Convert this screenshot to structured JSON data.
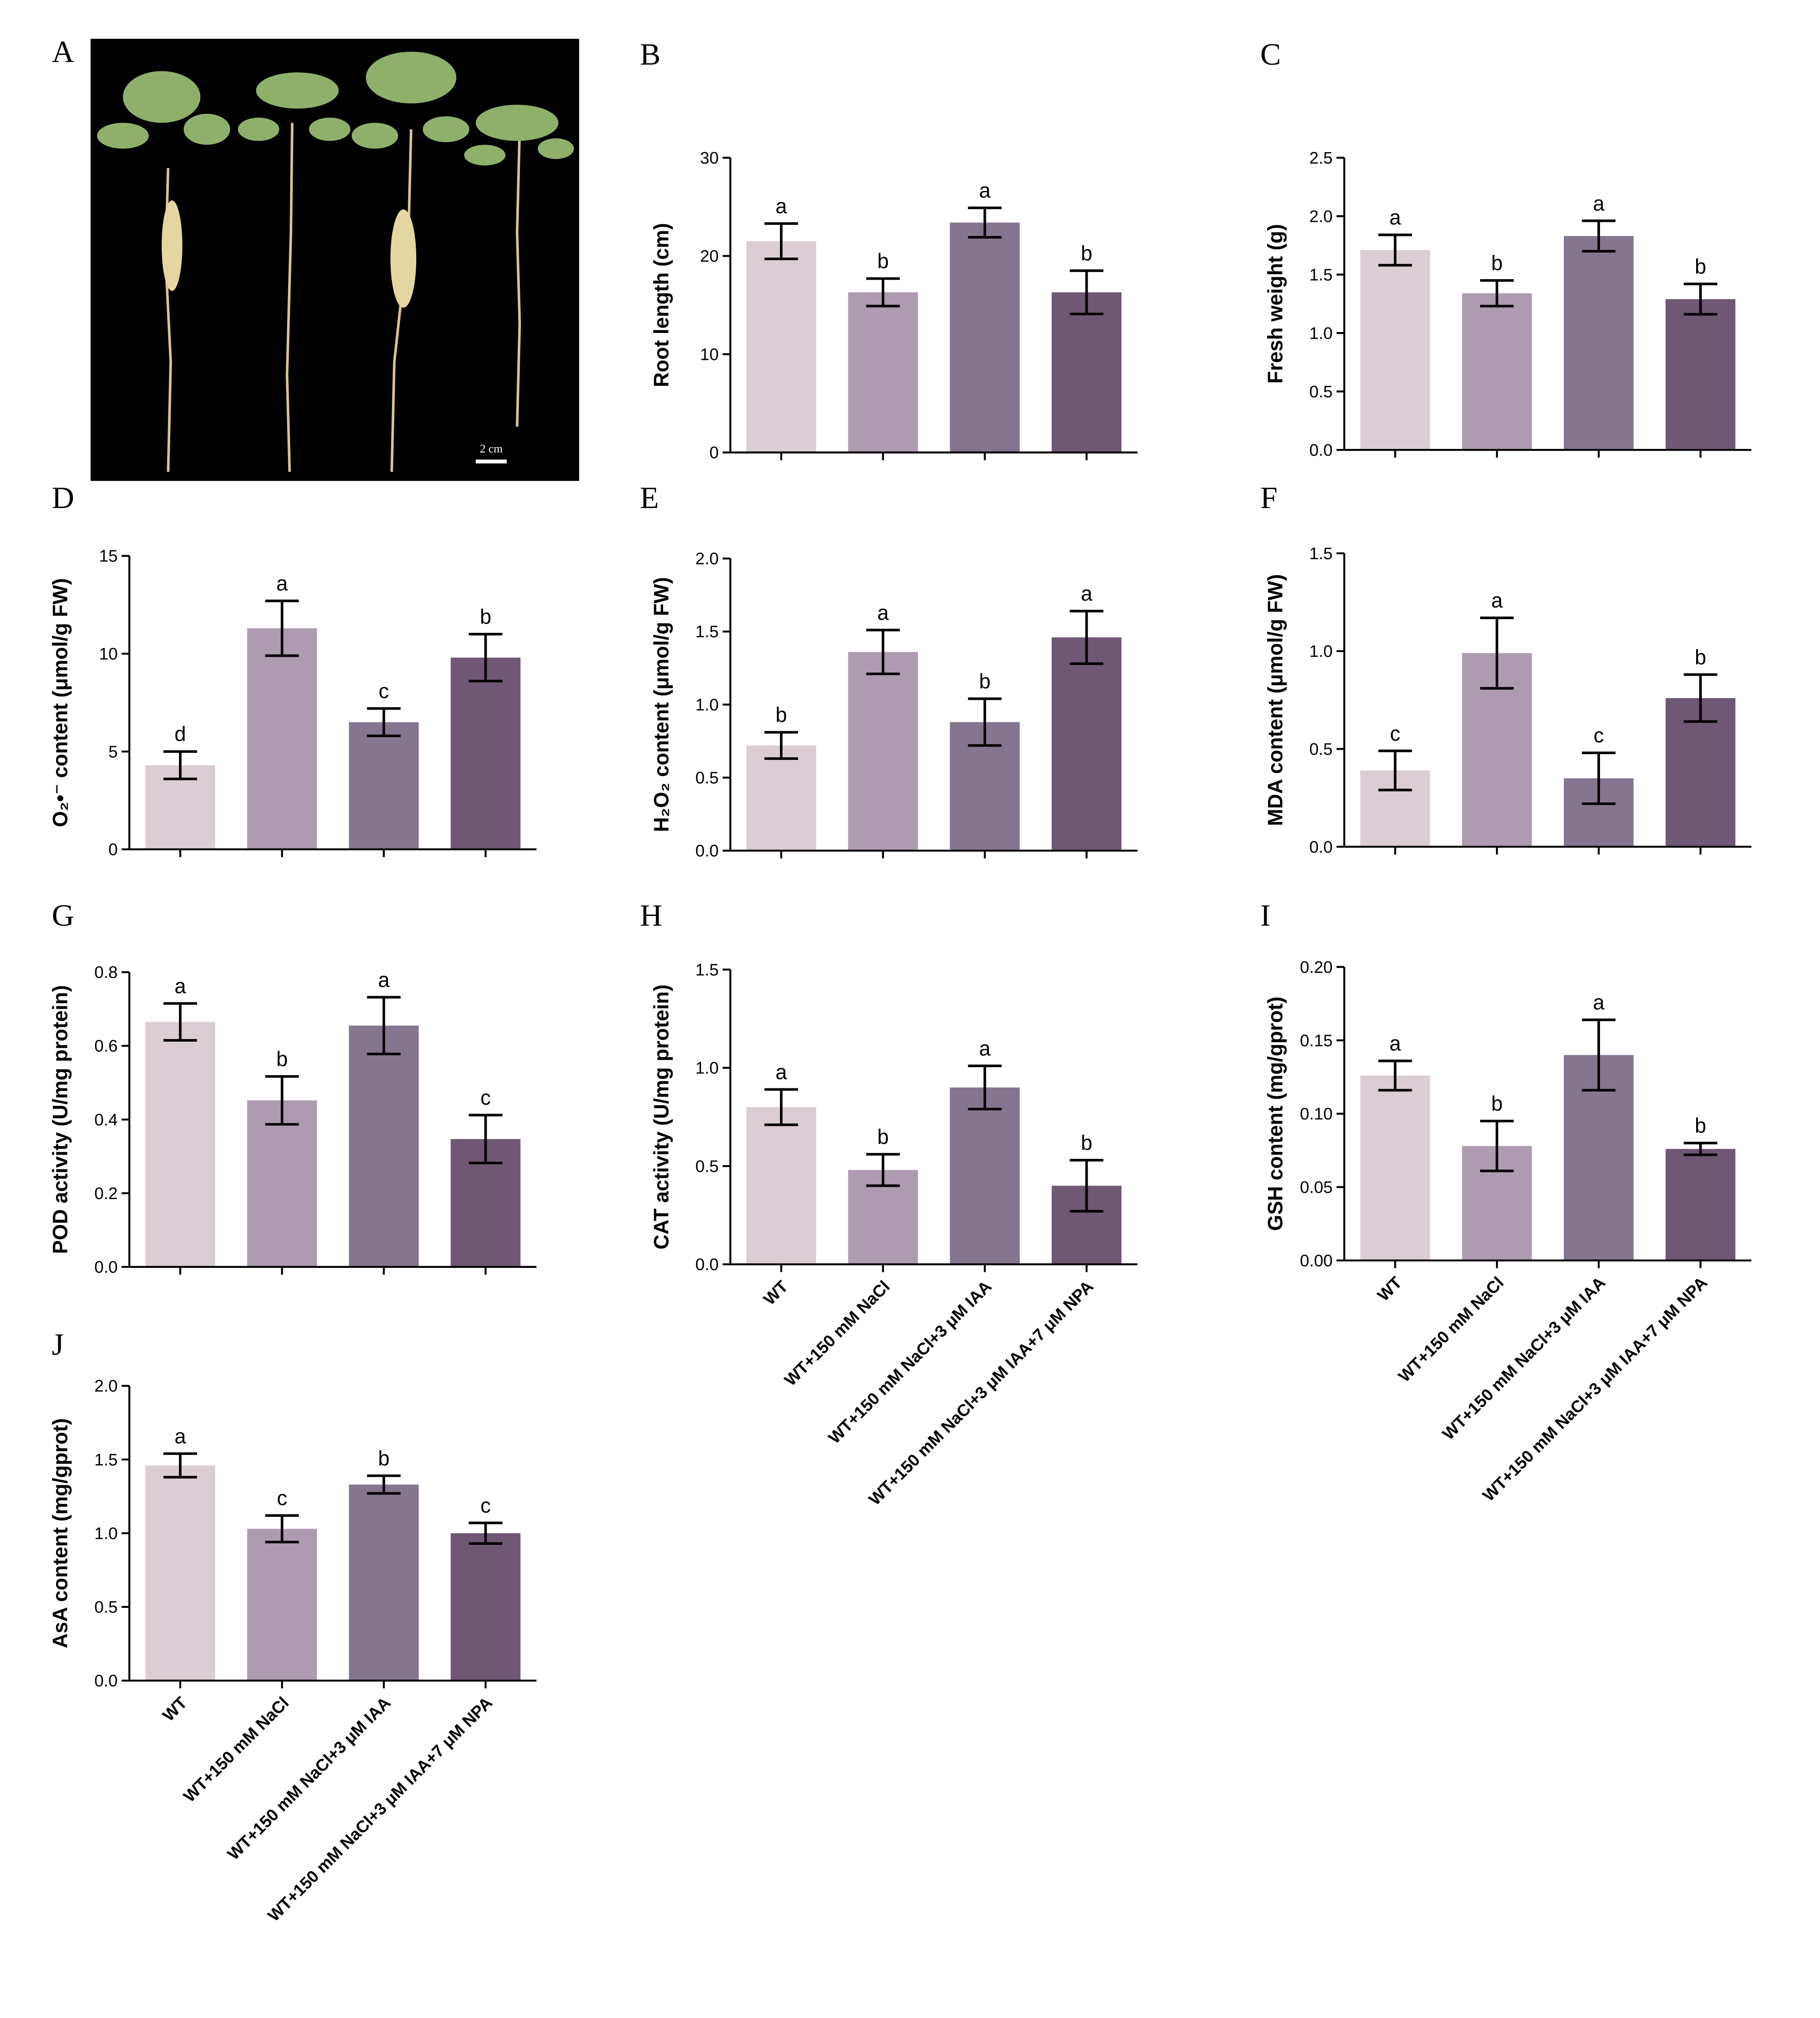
{
  "photo": {
    "label": "A",
    "scale_bar": "2 cm"
  },
  "chart_data": [
    {
      "type": "bar",
      "label": "B",
      "y_label": "Root length (cm)",
      "categories": [
        null,
        null,
        null,
        null
      ],
      "values": [
        21.5,
        16.3,
        23.4,
        16.3
      ],
      "errors": [
        1.8,
        1.4,
        1.5,
        2.2
      ],
      "annotations": [
        "a",
        "b",
        "a",
        "b"
      ],
      "colors": [
        "#dbcdd4",
        "#ad9baf",
        "#85768f",
        "#6f5873"
      ],
      "ylim": [
        0,
        30
      ],
      "yticks": [
        0,
        10,
        20,
        30
      ]
    },
    {
      "type": "bar",
      "label": "C",
      "y_label": "Fresh weight (g)",
      "categories": [
        null,
        null,
        null,
        null
      ],
      "values": [
        1.71,
        1.34,
        1.83,
        1.29
      ],
      "errors": [
        0.13,
        0.11,
        0.13,
        0.13
      ],
      "annotations": [
        "a",
        "b",
        "a",
        "b"
      ],
      "colors": [
        "#dbcdd4",
        "#ad9baf",
        "#85768f",
        "#6f5873"
      ],
      "ylim": [
        0,
        2.5
      ],
      "yticks": [
        {
          "value": 0,
          "label": "0.0"
        },
        0.5,
        {
          "value": 1,
          "label": "1.0"
        },
        1.5,
        {
          "value": 2,
          "label": "2.0"
        },
        2.5
      ]
    },
    {
      "type": "bar",
      "label": "D",
      "y_label": "O₂•⁻ content (μmol/g FW)",
      "categories": [
        null,
        null,
        null,
        null
      ],
      "values": [
        4.3,
        11.3,
        6.5,
        9.8
      ],
      "errors": [
        0.7,
        1.4,
        0.7,
        1.2
      ],
      "annotations": [
        "d",
        "a",
        "c",
        "b"
      ],
      "colors": [
        "#dbcdd4",
        "#ad9baf",
        "#85768f",
        "#6f5873"
      ],
      "ylim": [
        0,
        15
      ],
      "yticks": [
        0,
        5,
        10,
        15
      ]
    },
    {
      "type": "bar",
      "label": "E",
      "y_label": "H₂O₂ content (μmol/g FW)",
      "categories": [
        null,
        null,
        null,
        null
      ],
      "values": [
        0.72,
        1.36,
        0.88,
        1.46
      ],
      "errors": [
        0.09,
        0.15,
        0.16,
        0.18
      ],
      "annotations": [
        "b",
        "a",
        "b",
        "a"
      ],
      "colors": [
        "#dbcdd4",
        "#ad9baf",
        "#85768f",
        "#6f5873"
      ],
      "ylim": [
        0,
        2
      ],
      "yticks": [
        {
          "value": 0,
          "label": "0.0"
        },
        0.5,
        {
          "value": 1,
          "label": "1.0"
        },
        1.5,
        {
          "value": 2,
          "label": "2.0"
        }
      ]
    },
    {
      "type": "bar",
      "label": "F",
      "y_label": "MDA content (μmol/g FW)",
      "categories": [
        null,
        null,
        null,
        null
      ],
      "values": [
        0.39,
        0.99,
        0.35,
        0.76
      ],
      "errors": [
        0.1,
        0.18,
        0.13,
        0.12
      ],
      "annotations": [
        "c",
        "a",
        "c",
        "b"
      ],
      "colors": [
        "#dbcdd4",
        "#ad9baf",
        "#85768f",
        "#6f5873"
      ],
      "ylim": [
        0,
        1.5
      ],
      "yticks": [
        {
          "value": 0,
          "label": "0.0"
        },
        0.5,
        {
          "value": 1,
          "label": "1.0"
        },
        1.5
      ]
    },
    {
      "type": "bar",
      "label": "G",
      "y_label": "POD activity (U/mg protein)",
      "categories": [
        null,
        null,
        null,
        null
      ],
      "values": [
        0.665,
        0.452,
        0.655,
        0.347
      ],
      "errors": [
        0.05,
        0.065,
        0.077,
        0.065
      ],
      "annotations": [
        "a",
        "b",
        "a",
        "c"
      ],
      "colors": [
        "#dbcdd4",
        "#ad9baf",
        "#85768f",
        "#6f5873"
      ],
      "ylim": [
        0,
        0.8
      ],
      "yticks": [
        {
          "value": 0,
          "label": "0.0"
        },
        0.2,
        0.4,
        0.6,
        0.8
      ]
    },
    {
      "type": "bar",
      "label": "H",
      "y_label": "CAT activity (U/mg protein)",
      "categories": [
        "WT",
        "WT+150 mM NaCl",
        "WT+150 mM NaCl+3 μM IAA",
        "WT+150 mM NaCl+3 μM IAA+7 μM NPA"
      ],
      "values": [
        0.8,
        0.48,
        0.9,
        0.4
      ],
      "errors": [
        0.09,
        0.08,
        0.11,
        0.13
      ],
      "annotations": [
        "a",
        "b",
        "a",
        "b"
      ],
      "colors": [
        "#dbcdd4",
        "#ad9baf",
        "#85768f",
        "#6f5873"
      ],
      "ylim": [
        0,
        1.5
      ],
      "yticks": [
        {
          "value": 0,
          "label": "0.0"
        },
        0.5,
        {
          "value": 1,
          "label": "1.0"
        },
        1.5
      ]
    },
    {
      "type": "bar",
      "label": "I",
      "y_label": "GSH content (mg/gprot)",
      "categories": [
        "WT",
        "WT+150 mM NaCl",
        "WT+150 mM NaCl+3 μM IAA",
        "WT+150 mM NaCl+3 μM IAA+7 μM NPA"
      ],
      "values": [
        0.126,
        0.078,
        0.14,
        0.076
      ],
      "errors": [
        0.01,
        0.017,
        0.024,
        0.004
      ],
      "annotations": [
        "a",
        "b",
        "a",
        "b"
      ],
      "colors": [
        "#dbcdd4",
        "#ad9baf",
        "#85768f",
        "#6f5873"
      ],
      "ylim": [
        0,
        0.2
      ],
      "yticks": [
        {
          "value": 0,
          "label": "0.00"
        },
        0.05,
        {
          "value": 0.1,
          "label": "0.10"
        },
        0.15,
        {
          "value": 0.2,
          "label": "0.20"
        }
      ]
    },
    {
      "type": "bar",
      "label": "J",
      "y_label": "AsA content (mg/gprot)",
      "categories": [
        "WT",
        "WT+150 mM NaCl",
        "WT+150 mM NaCl+3 μM IAA",
        "WT+150 mM NaCl+3 μM IAA+7 μM NPA"
      ],
      "values": [
        1.46,
        1.03,
        1.33,
        1.0
      ],
      "errors": [
        0.08,
        0.09,
        0.06,
        0.07
      ],
      "annotations": [
        "a",
        "c",
        "b",
        "c"
      ],
      "colors": [
        "#dbcdd4",
        "#ad9baf",
        "#85768f",
        "#6f5873"
      ],
      "ylim": [
        0,
        2
      ],
      "yticks": [
        {
          "value": 0,
          "label": "0.0"
        },
        0.5,
        {
          "value": 1,
          "label": "1.0"
        },
        1.5,
        {
          "value": 2,
          "label": "2.0"
        }
      ]
    }
  ]
}
